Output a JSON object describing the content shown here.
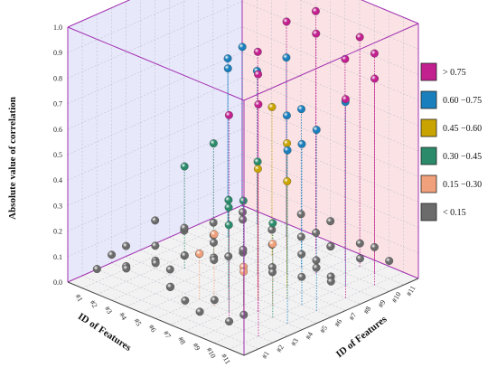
{
  "chart_data": {
    "type": "scatter3d",
    "title": "",
    "zlabel": "Absolute value of correlation",
    "xlabel": "ID of Features",
    "ylabel": "ID of Features",
    "zlim": [
      0,
      1
    ],
    "x_ticks": [
      "#1",
      "#2",
      "#3",
      "#4",
      "#5",
      "#6",
      "#7",
      "#8",
      "#9",
      "#10",
      "#11"
    ],
    "y_ticks": [
      "#1",
      "#2",
      "#3",
      "#4",
      "#5",
      "#6",
      "#7",
      "#8",
      "#9",
      "#10",
      "#11"
    ],
    "z_ticks": [
      "0.0",
      "0.1",
      "0.2",
      "0.3",
      "0.4",
      "0.5",
      "0.6",
      "0.7",
      "0.8",
      "0.9",
      "1.0"
    ],
    "grid": true,
    "legend_position": "right",
    "legend": [
      {
        "label": "> 0.75",
        "color": "#c21f8f"
      },
      {
        "label": "0.60 −0.75",
        "color": "#1a7fbd"
      },
      {
        "label": "0.45 −0.60",
        "color": "#c9a400"
      },
      {
        "label": "0.30 −0.45",
        "color": "#2a8a6a"
      },
      {
        "label": "0.15 −0.30",
        "color": "#f0a07a"
      },
      {
        "label": "< 0.15",
        "color": "#6b6b6b"
      }
    ],
    "points": [
      {
        "x": 1,
        "y": 11,
        "z": 0.67
      },
      {
        "x": 1,
        "y": 10,
        "z": 0.65
      },
      {
        "x": 2,
        "y": 9,
        "z": 0.66
      },
      {
        "x": 2,
        "y": 11,
        "z": 0.6
      },
      {
        "x": 3,
        "y": 7,
        "z": 0.44
      },
      {
        "x": 3,
        "y": 5,
        "z": 0.4
      },
      {
        "x": 4,
        "y": 11,
        "z": 0.7
      },
      {
        "x": 5,
        "y": 9,
        "z": 0.58
      },
      {
        "x": 6,
        "y": 7,
        "z": 0.44
      },
      {
        "x": 6,
        "y": 5,
        "z": 0.34
      },
      {
        "x": 7,
        "y": 9,
        "z": 0.62
      },
      {
        "x": 8,
        "y": 11,
        "z": 0.79
      },
      {
        "x": 6,
        "y": 11,
        "z": 0.93
      },
      {
        "x": 5,
        "y": 10,
        "z": 0.89
      },
      {
        "x": 8,
        "y": 9,
        "z": 0.94
      },
      {
        "x": 9,
        "y": 11,
        "z": 0.9
      },
      {
        "x": 10,
        "y": 11,
        "z": 0.86
      },
      {
        "x": 11,
        "y": 10,
        "z": 0.81
      },
      {
        "x": 11,
        "y": 8,
        "z": 0.78
      },
      {
        "x": 11,
        "y": 6,
        "z": 0.71
      },
      {
        "x": 10,
        "y": 9,
        "z": 0.72
      },
      {
        "x": 10,
        "y": 6,
        "z": 0.63
      },
      {
        "x": 11,
        "y": 4,
        "z": 0.68
      },
      {
        "x": 11,
        "y": 2,
        "z": 0.91
      },
      {
        "x": 9,
        "y": 4,
        "z": 0.93
      },
      {
        "x": 9,
        "y": 2,
        "z": 0.82
      },
      {
        "x": 7,
        "y": 6,
        "z": 0.92
      },
      {
        "x": 7,
        "y": 8,
        "z": 0.62
      },
      {
        "x": 8,
        "y": 7,
        "z": 0.56
      },
      {
        "x": 8,
        "y": 5,
        "z": 0.51
      },
      {
        "x": 9,
        "y": 6,
        "z": 0.46
      },
      {
        "x": 10,
        "y": 4,
        "z": 0.37
      },
      {
        "x": 10,
        "y": 2,
        "z": 0.23
      },
      {
        "x": 9,
        "y": 3,
        "z": 0.2
      },
      {
        "x": 7,
        "y": 3,
        "z": 0.28
      },
      {
        "x": 6,
        "y": 3,
        "z": 0.18
      },
      {
        "x": 7,
        "y": 4,
        "z": 0.36
      },
      {
        "x": 8,
        "y": 3,
        "z": 0.34
      },
      {
        "x": 8,
        "y": 4,
        "z": 0.41
      },
      {
        "x": 9,
        "y": 5,
        "z": 0.24
      },
      {
        "x": 5,
        "y": 4,
        "z": 0.13
      },
      {
        "x": 4,
        "y": 4,
        "z": 0.1
      },
      {
        "x": 3,
        "y": 3,
        "z": 0.08
      },
      {
        "x": 2,
        "y": 2,
        "z": 0.06
      },
      {
        "x": 1,
        "y": 1,
        "z": 0.05
      },
      {
        "x": 2,
        "y": 4,
        "z": 0.09
      },
      {
        "x": 3,
        "y": 5,
        "z": 0.05
      },
      {
        "x": 4,
        "y": 6,
        "z": 0.1
      },
      {
        "x": 5,
        "y": 6,
        "z": 0.07
      },
      {
        "x": 5,
        "y": 7,
        "z": 0.06
      },
      {
        "x": 6,
        "y": 8,
        "z": 0.09
      },
      {
        "x": 7,
        "y": 10,
        "z": 0.11
      },
      {
        "x": 8,
        "y": 10,
        "z": 0.08
      },
      {
        "x": 9,
        "y": 9,
        "z": 0.13
      },
      {
        "x": 10,
        "y": 10,
        "z": 0.14
      },
      {
        "x": 10,
        "y": 11,
        "z": 0.1
      },
      {
        "x": 11,
        "y": 11,
        "z": 0.07
      },
      {
        "x": 4,
        "y": 2,
        "z": 0.12
      },
      {
        "x": 5,
        "y": 2,
        "z": 0.05
      },
      {
        "x": 6,
        "y": 1,
        "z": 0.1
      },
      {
        "x": 7,
        "y": 1,
        "z": 0.07
      },
      {
        "x": 8,
        "y": 1,
        "z": 0.05
      },
      {
        "x": 9,
        "y": 1,
        "z": 0.12
      },
      {
        "x": 10,
        "y": 1,
        "z": 0.06
      },
      {
        "x": 11,
        "y": 1,
        "z": 0.11
      },
      {
        "x": 3,
        "y": 1,
        "z": 0.1
      },
      {
        "x": 2,
        "y": 1,
        "z": 0.13
      },
      {
        "x": 1,
        "y": 3,
        "z": 0.09
      },
      {
        "x": 1,
        "y": 5,
        "z": 0.14
      },
      {
        "x": 1,
        "y": 7,
        "z": 0.05
      },
      {
        "x": 2,
        "y": 8,
        "z": 0.08
      },
      {
        "x": 3,
        "y": 9,
        "z": 0.12
      },
      {
        "x": 4,
        "y": 10,
        "z": 0.05
      },
      {
        "x": 5,
        "y": 11,
        "z": 0.11
      },
      {
        "x": 6,
        "y": 10,
        "z": 0.07
      },
      {
        "x": 7,
        "y": 11,
        "z": 0.13
      },
      {
        "x": 8,
        "y": 8,
        "z": 0.1
      },
      {
        "x": 9,
        "y": 7,
        "z": 0.06
      },
      {
        "x": 10,
        "y": 7,
        "z": 0.12
      },
      {
        "x": 11,
        "y": 7,
        "z": 0.09
      },
      {
        "x": 6,
        "y": 6,
        "z": 0.12
      },
      {
        "x": 7,
        "y": 7,
        "z": 0.05
      },
      {
        "x": 4,
        "y": 8,
        "z": 0.14
      },
      {
        "x": 3,
        "y": 7,
        "z": 0.08
      },
      {
        "x": 2,
        "y": 6,
        "z": 0.11
      },
      {
        "x": 5,
        "y": 5,
        "z": 0.09
      },
      {
        "x": 6,
        "y": 4,
        "z": 0.13
      },
      {
        "x": 8,
        "y": 6,
        "z": 0.08
      },
      {
        "x": 9,
        "y": 8,
        "z": 0.1
      },
      {
        "x": 10,
        "y": 8,
        "z": 0.06
      },
      {
        "x": 11,
        "y": 9,
        "z": 0.13
      },
      {
        "x": 4,
        "y": 3,
        "z": 0.07
      }
    ]
  }
}
